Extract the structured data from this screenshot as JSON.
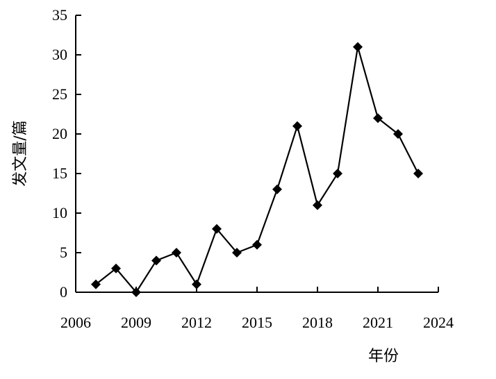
{
  "chart_data": {
    "type": "line",
    "xlabel": "年份",
    "ylabel": "发文量/篇",
    "xlim": [
      2006,
      2024
    ],
    "ylim": [
      0,
      35
    ],
    "xticks": [
      2006,
      2009,
      2012,
      2015,
      2018,
      2021,
      2024
    ],
    "yticks": [
      0,
      5,
      10,
      15,
      20,
      25,
      30,
      35
    ],
    "grid": false,
    "legend": "none",
    "marker": "diamond",
    "line_color": "#000000",
    "series": [
      {
        "x": [
          2007,
          2008,
          2009,
          2010,
          2011,
          2012,
          2013,
          2014,
          2015,
          2016,
          2017,
          2018,
          2019,
          2020,
          2021,
          2022,
          2023
        ],
        "values": [
          1,
          3,
          0,
          4,
          5,
          1,
          8,
          5,
          6,
          13,
          21,
          11,
          15,
          31,
          22,
          20,
          15
        ]
      }
    ]
  }
}
